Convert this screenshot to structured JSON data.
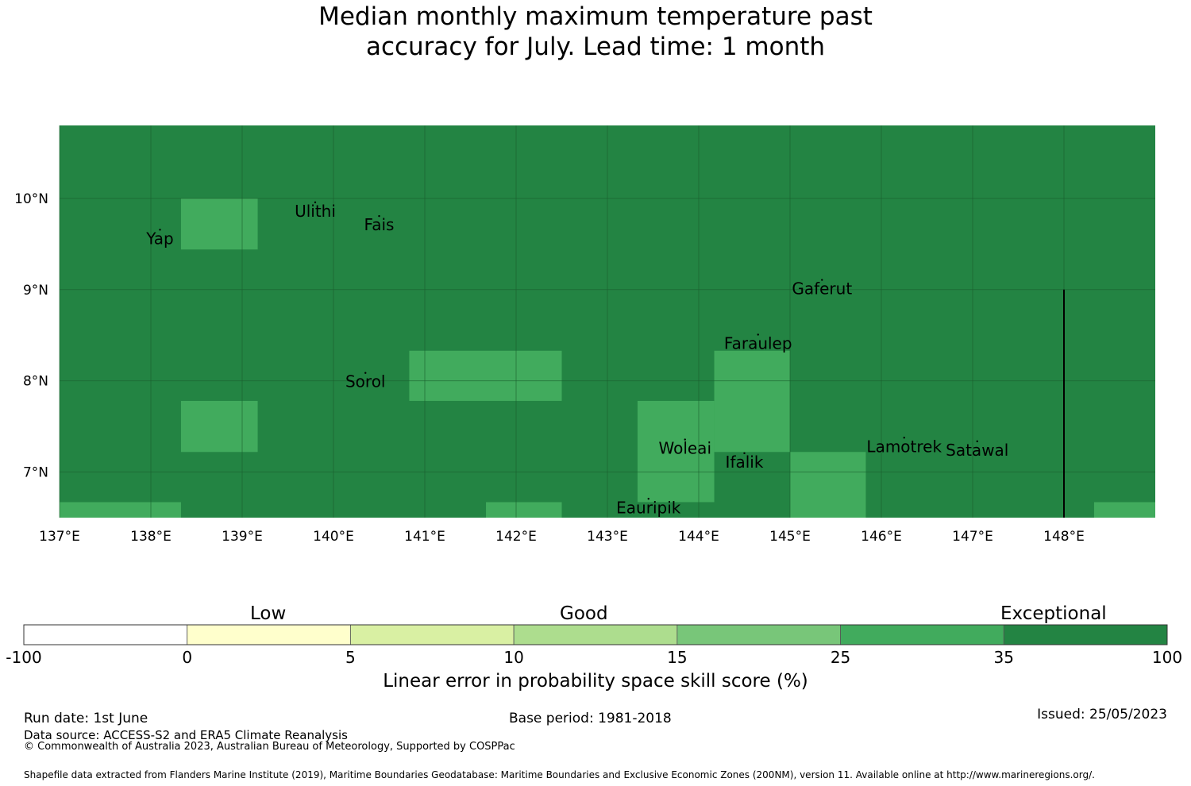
{
  "title_line1": "Median monthly maximum temperature past",
  "title_line2": "accuracy for July. Lead time: 1 month",
  "map": {
    "lon_range": [
      137,
      149
    ],
    "lat_range": [
      6.5,
      10.8
    ],
    "lon_ticks": [
      {
        "value": 137,
        "label": "137°E"
      },
      {
        "value": 138,
        "label": "138°E"
      },
      {
        "value": 139,
        "label": "139°E"
      },
      {
        "value": 140,
        "label": "140°E"
      },
      {
        "value": 141,
        "label": "141°E"
      },
      {
        "value": 142,
        "label": "142°E"
      },
      {
        "value": 143,
        "label": "143°E"
      },
      {
        "value": 144,
        "label": "144°E"
      },
      {
        "value": 145,
        "label": "145°E"
      },
      {
        "value": 146,
        "label": "146°E"
      },
      {
        "value": 147,
        "label": "147°E"
      },
      {
        "value": 148,
        "label": "148°E"
      }
    ],
    "lat_ticks": [
      {
        "value": 10,
        "label": "10°N"
      },
      {
        "value": 9,
        "label": "9°N"
      },
      {
        "value": 8,
        "label": "8°N"
      },
      {
        "value": 7,
        "label": "7°N"
      }
    ],
    "background_category": "exceptional",
    "cells": [
      {
        "lon": [
          138.33,
          139.17
        ],
        "lat": [
          9.44,
          10.0
        ],
        "category": "high"
      },
      {
        "lon": [
          138.33,
          139.17
        ],
        "lat": [
          7.22,
          7.78
        ],
        "category": "high"
      },
      {
        "lon": [
          140.83,
          142.5
        ],
        "lat": [
          7.78,
          8.33
        ],
        "category": "high"
      },
      {
        "lon": [
          144.17,
          145.0
        ],
        "lat": [
          7.22,
          8.33
        ],
        "category": "high"
      },
      {
        "lon": [
          143.33,
          144.17
        ],
        "lat": [
          6.67,
          7.78
        ],
        "category": "high"
      },
      {
        "lon": [
          145.0,
          145.83
        ],
        "lat": [
          6.5,
          7.22
        ],
        "category": "high"
      },
      {
        "lon": [
          137.0,
          138.33
        ],
        "lat": [
          6.5,
          6.67
        ],
        "category": "high"
      },
      {
        "lon": [
          141.67,
          142.5
        ],
        "lat": [
          6.5,
          6.67
        ],
        "category": "high"
      },
      {
        "lon": [
          148.33,
          149.0
        ],
        "lat": [
          6.5,
          6.67
        ],
        "category": "high"
      }
    ],
    "boundary_line": {
      "lon": 148.0,
      "lat": [
        6.5,
        9.0
      ]
    },
    "places": [
      {
        "name": "Yap",
        "lon": 138.1,
        "lat": 9.5
      },
      {
        "name": "Ulithi",
        "lon": 139.8,
        "lat": 9.8
      },
      {
        "name": "Fais",
        "lon": 140.5,
        "lat": 9.65
      },
      {
        "name": "Gaferut",
        "lon": 145.35,
        "lat": 8.95
      },
      {
        "name": "Faraulep",
        "lon": 144.65,
        "lat": 8.35
      },
      {
        "name": "Sorol",
        "lon": 140.35,
        "lat": 7.93
      },
      {
        "name": "Woleai",
        "lon": 143.85,
        "lat": 7.2
      },
      {
        "name": "Ifalik",
        "lon": 144.5,
        "lat": 7.05
      },
      {
        "name": "Lamotrek",
        "lon": 146.25,
        "lat": 7.22
      },
      {
        "name": "Satawal",
        "lon": 147.05,
        "lat": 7.18
      },
      {
        "name": "Eauripik",
        "lon": 143.45,
        "lat": 6.55
      }
    ]
  },
  "colorbar": {
    "bins": [
      {
        "from": "-100",
        "to": "0",
        "color": "#ffffff"
      },
      {
        "from": "0",
        "to": "5",
        "color": "#ffffcc"
      },
      {
        "from": "5",
        "to": "10",
        "color": "#d9f0a3"
      },
      {
        "from": "10",
        "to": "15",
        "color": "#addd8e"
      },
      {
        "from": "15",
        "to": "25",
        "color": "#78c679"
      },
      {
        "from": "25",
        "to": "35",
        "color": "#41ab5d"
      },
      {
        "from": "35",
        "to": "100",
        "color": "#238443"
      }
    ],
    "tick_labels": [
      "-100",
      "0",
      "5",
      "10",
      "15",
      "25",
      "35",
      "100"
    ],
    "categories": [
      "Low",
      "Good",
      "Exceptional"
    ],
    "label": "Linear error in probability space skill score (%)"
  },
  "category_colors": {
    "exceptional": "#238443",
    "high": "#41ab5d"
  },
  "footer": {
    "run_date": "Run date: 1st June",
    "base_period": "Base period: 1981-2018",
    "issued": "Issued: 25/05/2023",
    "data_source": "Data source: ACCESS-S2 and ERA5 Climate Reanalysis",
    "copyright": "© Commonwealth of Australia 2023, Australian Bureau of Meteorology, Supported by COSPPac",
    "shapefile": "Shapefile data extracted from Flanders Marine Institute (2019), Maritime Boundaries Geodatabase: Maritime Boundaries and Exclusive Economic Zones (200NM), version 11. Available online at http://www.marineregions.org/."
  }
}
